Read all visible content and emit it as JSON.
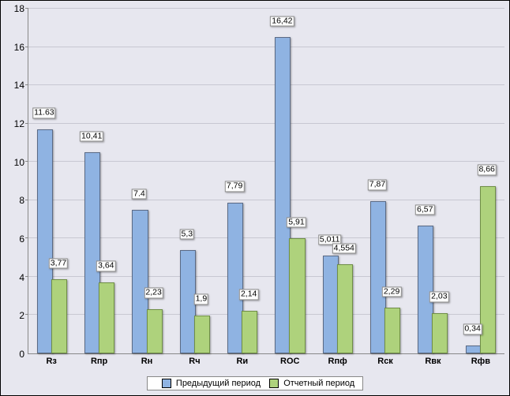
{
  "chart": {
    "type": "bar",
    "background_color": "#e7e7ef",
    "grid_color": "#c8c8d2",
    "series_colors": [
      "#8fb3e2",
      "#aed27c"
    ],
    "bar_border": "#5a6a85",
    "bar_border2": "#6f8e46",
    "ylim": [
      0,
      18
    ],
    "ytick_step": 2,
    "title_fontsize": 12,
    "label_fontsize": 11,
    "categories": [
      "Rз",
      "Rпр",
      "Rн",
      "Rч",
      "Rи",
      "ROC",
      "Rпф",
      "Rск",
      "Rвк",
      "Rфв"
    ],
    "series": [
      {
        "name": "Предыдущий период",
        "values": [
          11.63,
          10.41,
          7.4,
          5.3,
          7.79,
          16.42,
          5.011,
          7.87,
          6.57,
          0.34
        ],
        "labels": [
          "11.63",
          "10,41",
          "7.4",
          "5,3",
          "7,79",
          "16,42",
          "5,011",
          "7,87",
          "6,57",
          "0,34"
        ]
      },
      {
        "name": "Отчетный период",
        "values": [
          3.77,
          3.64,
          2.23,
          1.9,
          2.14,
          5.91,
          4.554,
          2.29,
          2.03,
          8.66
        ],
        "labels": [
          "3,77",
          "3,64",
          "2,23",
          "1,9",
          "2,14",
          "5,91",
          "4,554",
          "2,29",
          "2,03",
          "8,66"
        ]
      }
    ]
  }
}
